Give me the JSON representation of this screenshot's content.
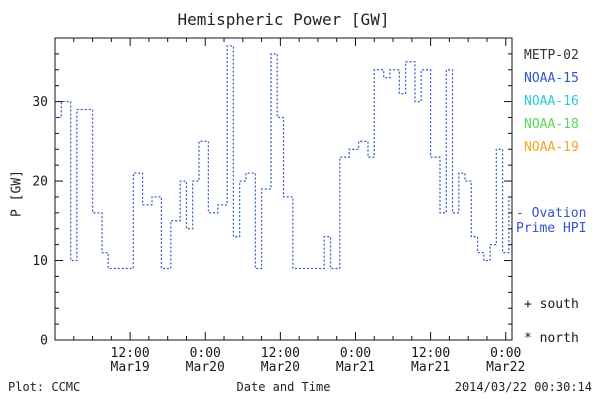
{
  "title": "Hemispheric Power [GW]",
  "ylabel": "P [GW]",
  "xlabel": "Date and Time",
  "footer": {
    "left": "Plot: CCMC",
    "right": "2014/03/22 00:30:14"
  },
  "legend": {
    "satellites": [
      {
        "label": "METP-02",
        "color": "#333333"
      },
      {
        "label": "NOAA-15",
        "color": "#3355cc"
      },
      {
        "label": "NOAA-16",
        "color": "#2ec8dc"
      },
      {
        "label": "NOAA-18",
        "color": "#5cd65c"
      },
      {
        "label": "NOAA-19",
        "color": "#f5a623"
      }
    ],
    "ovation": {
      "line1": "- Ovation",
      "line2": "Prime HPI",
      "color": "#3355cc"
    },
    "markers": [
      {
        "label": "+ south"
      },
      {
        "label": "* north"
      }
    ]
  },
  "chart_data": {
    "type": "line",
    "line_style": "dotted-step",
    "line_color": "#3a62c8",
    "title": "Hemispheric Power [GW]",
    "xlabel": "Date and Time",
    "ylabel": "P [GW]",
    "ylim": [
      0,
      38
    ],
    "yticks": [
      0,
      10,
      20,
      30
    ],
    "xlim_hours": [
      0,
      73
    ],
    "x_start": "2014-03-19 00:00",
    "xticks": [
      {
        "hour": 12,
        "time": "12:00",
        "date": "Mar19"
      },
      {
        "hour": 24,
        "time": "0:00",
        "date": "Mar20"
      },
      {
        "hour": 36,
        "time": "12:00",
        "date": "Mar20"
      },
      {
        "hour": 48,
        "time": "0:00",
        "date": "Mar21"
      },
      {
        "hour": 60,
        "time": "12:00",
        "date": "Mar21"
      },
      {
        "hour": 72,
        "time": "0:00",
        "date": "Mar22"
      }
    ],
    "series": [
      {
        "name": "Ovation Prime HPI",
        "x": [
          0,
          1,
          2.5,
          3.5,
          6,
          7.5,
          8.5,
          12.5,
          14,
          15.5,
          17,
          18.5,
          20,
          21,
          22,
          23,
          24.5,
          26,
          27.5,
          28.5,
          29.5,
          30.5,
          32,
          33,
          34.5,
          35.5,
          36.5,
          38,
          43,
          44,
          45.5,
          47,
          48.5,
          50,
          51,
          52.5,
          53.5,
          55,
          56,
          57.5,
          58.5,
          60,
          61.5,
          62.5,
          63.5,
          64.5,
          65.5,
          66.5,
          67.5,
          68.5,
          69.5,
          70.5,
          71.5,
          72.5
        ],
        "y": [
          28,
          30,
          10,
          29,
          16,
          11,
          9,
          21,
          17,
          18,
          9,
          15,
          20,
          14,
          20,
          25,
          16,
          17,
          37,
          13,
          20,
          21,
          9,
          19,
          36,
          28,
          18,
          9,
          13,
          9,
          23,
          24,
          25,
          23,
          34,
          33,
          34,
          31,
          35,
          30,
          34,
          23,
          16,
          34,
          16,
          21,
          20,
          13,
          11,
          10,
          12,
          24,
          11,
          18
        ]
      }
    ]
  }
}
